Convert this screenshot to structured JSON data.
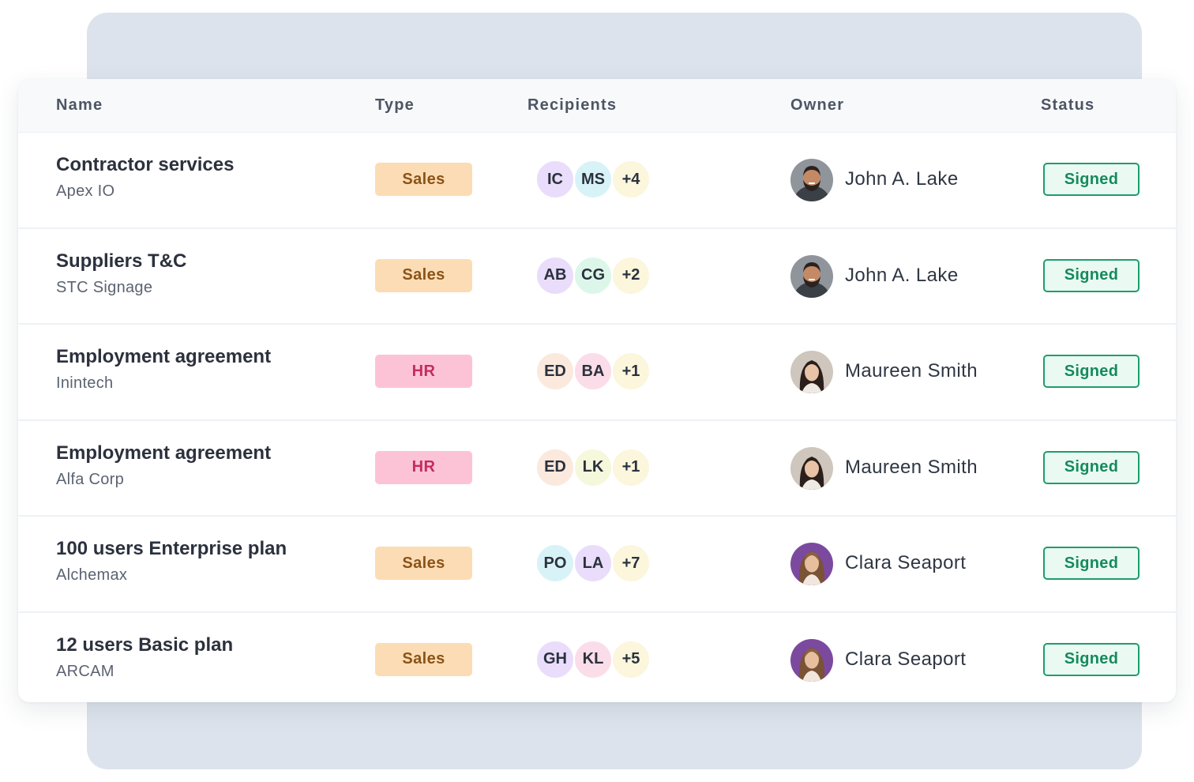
{
  "table": {
    "headers": {
      "name": "Name",
      "type": "Type",
      "recipients": "Recipients",
      "owner": "Owner",
      "status": "Status"
    },
    "rows": [
      {
        "title": "Contractor services",
        "company": "Apex IO",
        "type": "Sales",
        "recipients": [
          {
            "label": "IC",
            "color": "#e9ddfb"
          },
          {
            "label": "MS",
            "color": "#d8f3f7"
          },
          {
            "label": "+4",
            "color": "#fbf6dc"
          }
        ],
        "owner": "John A. Lake",
        "owner_avatar": "man-beard",
        "status": "Signed"
      },
      {
        "title": "Suppliers T&C",
        "company": "STC Signage",
        "type": "Sales",
        "recipients": [
          {
            "label": "AB",
            "color": "#e9ddfb"
          },
          {
            "label": "CG",
            "color": "#dcf7e9"
          },
          {
            "label": "+2",
            "color": "#fbf6dc"
          }
        ],
        "owner": "John A. Lake",
        "owner_avatar": "man-beard",
        "status": "Signed"
      },
      {
        "title": "Employment agreement",
        "company": "Inintech",
        "type": "HR",
        "recipients": [
          {
            "label": "ED",
            "color": "#fbe9dd"
          },
          {
            "label": "BA",
            "color": "#fbdde9"
          },
          {
            "label": "+1",
            "color": "#fbf6dc"
          }
        ],
        "owner": "Maureen Smith",
        "owner_avatar": "woman-dark-hair",
        "status": "Signed"
      },
      {
        "title": "Employment agreement",
        "company": "Alfa Corp",
        "type": "HR",
        "recipients": [
          {
            "label": "ED",
            "color": "#fbe9dd"
          },
          {
            "label": "LK",
            "color": "#f6f8dc"
          },
          {
            "label": "+1",
            "color": "#fbf6dc"
          }
        ],
        "owner": "Maureen Smith",
        "owner_avatar": "woman-dark-hair",
        "status": "Signed"
      },
      {
        "title": "100 users Enterprise plan",
        "company": "Alchemax",
        "type": "Sales",
        "recipients": [
          {
            "label": "PO",
            "color": "#d8f3f7"
          },
          {
            "label": "LA",
            "color": "#e9ddfb"
          },
          {
            "label": "+7",
            "color": "#fbf6dc"
          }
        ],
        "owner": "Clara Seaport",
        "owner_avatar": "woman-long-hair",
        "status": "Signed"
      },
      {
        "title": "12 users Basic plan",
        "company": "ARCAM",
        "type": "Sales",
        "recipients": [
          {
            "label": "GH",
            "color": "#e9ddfb"
          },
          {
            "label": "KL",
            "color": "#fbdde9"
          },
          {
            "label": "+5",
            "color": "#fbf6dc"
          }
        ],
        "owner": "Clara Seaport",
        "owner_avatar": "woman-long-hair",
        "status": "Signed"
      }
    ]
  },
  "colors": {
    "backdrop": "#dde3ec",
    "sales_bg": "#fcdcb4",
    "sales_text": "#8a5418",
    "hr_bg": "#fcc3d6",
    "hr_text": "#c42c5e",
    "signed_border": "#1f9d6b",
    "signed_text": "#158a5c"
  }
}
